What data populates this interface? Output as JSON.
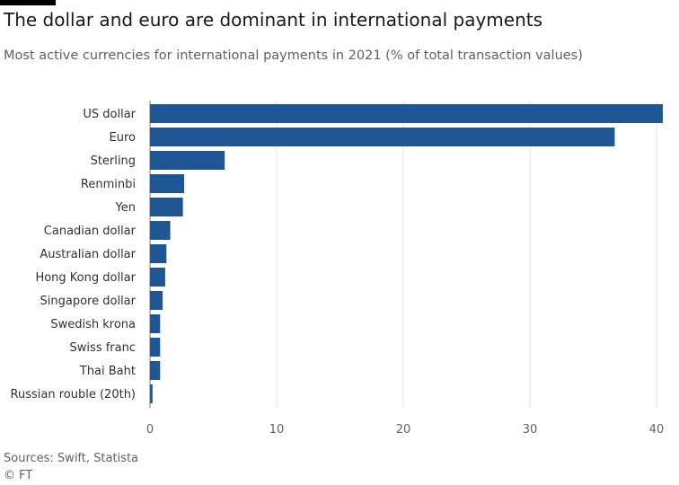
{
  "title": "The dollar and euro are dominant in international payments",
  "subtitle": "Most active currencies for international payments in 2021 (% of total transaction values)",
  "source": "Sources: Swift, Statista",
  "credit": "© FT",
  "colors": {
    "bar": "#1f5694",
    "grid": "#e6e3df",
    "axis": "#7f7b78"
  },
  "chart_data": {
    "type": "bar",
    "orientation": "horizontal",
    "categories": [
      "US dollar",
      "Euro",
      "Sterling",
      "Renminbi",
      "Yen",
      "Canadian dollar",
      "Australian dollar",
      "Hong Kong dollar",
      "Singapore dollar",
      "Swedish krona",
      "Swiss franc",
      "Thai Baht",
      "Russian rouble (20th)"
    ],
    "values": [
      40.5,
      36.7,
      5.9,
      2.7,
      2.6,
      1.6,
      1.3,
      1.2,
      1.0,
      0.8,
      0.8,
      0.8,
      0.2
    ],
    "xlim": [
      0,
      40.5
    ],
    "xticks": [
      0,
      10,
      20,
      30,
      40
    ],
    "grid": true
  }
}
